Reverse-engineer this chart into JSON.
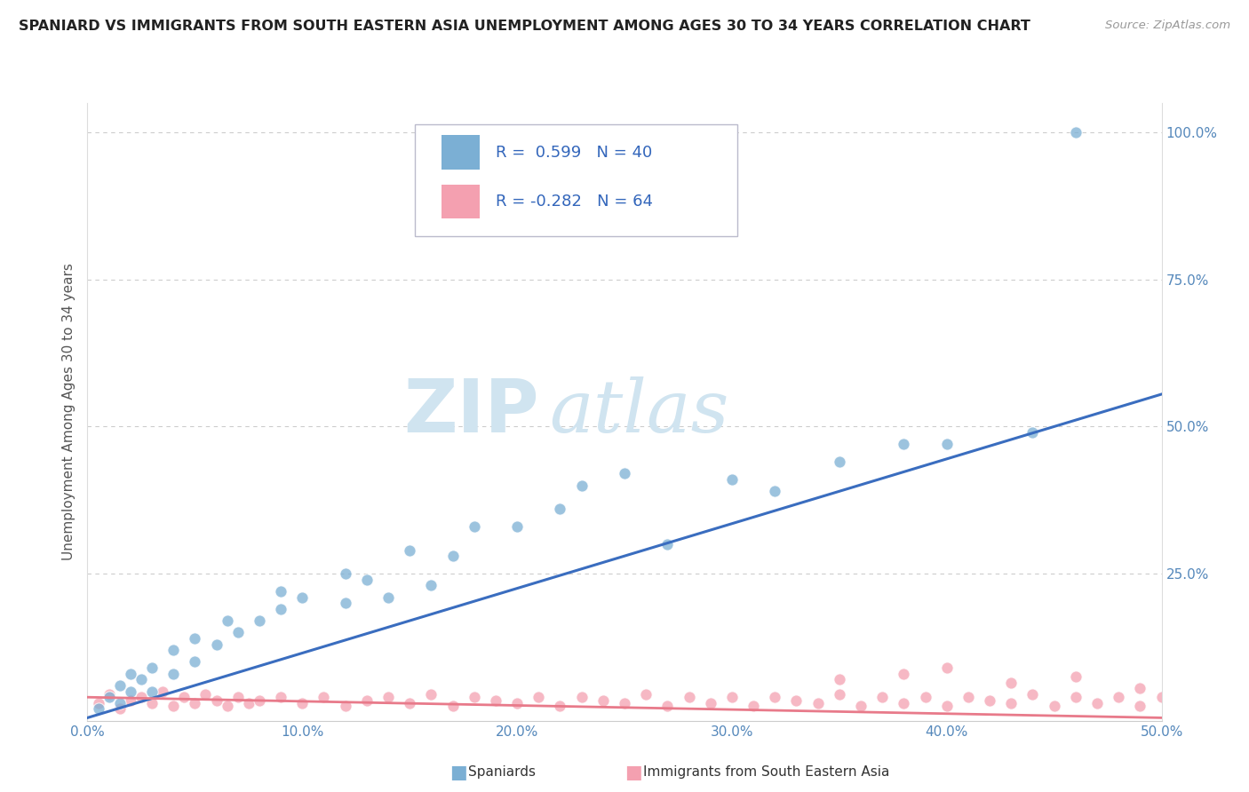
{
  "title": "SPANIARD VS IMMIGRANTS FROM SOUTH EASTERN ASIA UNEMPLOYMENT AMONG AGES 30 TO 34 YEARS CORRELATION CHART",
  "source": "Source: ZipAtlas.com",
  "ylabel": "Unemployment Among Ages 30 to 34 years",
  "x_min": 0.0,
  "x_max": 0.5,
  "y_min": 0.0,
  "y_max": 1.05,
  "x_ticks": [
    0.0,
    0.1,
    0.2,
    0.3,
    0.4,
    0.5
  ],
  "x_tick_labels": [
    "0.0%",
    "10.0%",
    "20.0%",
    "30.0%",
    "40.0%",
    "50.0%"
  ],
  "y_ticks": [
    0.0,
    0.25,
    0.5,
    0.75,
    1.0
  ],
  "y_tick_labels": [
    "",
    "25.0%",
    "50.0%",
    "75.0%",
    "100.0%"
  ],
  "spaniard_color": "#7bafd4",
  "immigrant_color": "#f4a0b0",
  "spaniard_R": 0.599,
  "spaniard_N": 40,
  "immigrant_R": -0.282,
  "immigrant_N": 64,
  "watermark_zip": "ZIP",
  "watermark_atlas": "atlas",
  "watermark_color": "#d0e4f0",
  "spaniard_line_x": [
    0.0,
    0.5
  ],
  "spaniard_line_y": [
    0.005,
    0.555
  ],
  "immigrant_line_x": [
    0.0,
    0.5
  ],
  "immigrant_line_y": [
    0.04,
    0.005
  ],
  "bottom_legend": [
    "Spaniards",
    "Immigrants from South Eastern Asia"
  ],
  "spaniard_scatter_x": [
    0.005,
    0.01,
    0.015,
    0.015,
    0.02,
    0.02,
    0.025,
    0.03,
    0.03,
    0.04,
    0.04,
    0.05,
    0.05,
    0.06,
    0.065,
    0.07,
    0.08,
    0.09,
    0.09,
    0.1,
    0.12,
    0.12,
    0.13,
    0.14,
    0.15,
    0.16,
    0.17,
    0.18,
    0.2,
    0.22,
    0.23,
    0.25,
    0.27,
    0.3,
    0.32,
    0.35,
    0.38,
    0.4,
    0.44,
    0.46
  ],
  "spaniard_scatter_y": [
    0.02,
    0.04,
    0.03,
    0.06,
    0.05,
    0.08,
    0.07,
    0.05,
    0.09,
    0.08,
    0.12,
    0.1,
    0.14,
    0.13,
    0.17,
    0.15,
    0.17,
    0.19,
    0.22,
    0.21,
    0.2,
    0.25,
    0.24,
    0.21,
    0.29,
    0.23,
    0.28,
    0.33,
    0.33,
    0.36,
    0.4,
    0.42,
    0.3,
    0.41,
    0.39,
    0.44,
    0.47,
    0.47,
    0.49,
    1.0
  ],
  "immigrant_scatter_x": [
    0.005,
    0.01,
    0.015,
    0.02,
    0.025,
    0.03,
    0.035,
    0.04,
    0.045,
    0.05,
    0.055,
    0.06,
    0.065,
    0.07,
    0.075,
    0.08,
    0.09,
    0.1,
    0.11,
    0.12,
    0.13,
    0.14,
    0.15,
    0.16,
    0.17,
    0.18,
    0.19,
    0.2,
    0.21,
    0.22,
    0.23,
    0.24,
    0.25,
    0.26,
    0.27,
    0.28,
    0.29,
    0.3,
    0.31,
    0.32,
    0.33,
    0.34,
    0.35,
    0.36,
    0.37,
    0.38,
    0.39,
    0.4,
    0.41,
    0.42,
    0.43,
    0.44,
    0.45,
    0.46,
    0.47,
    0.48,
    0.49,
    0.5,
    0.35,
    0.38,
    0.4,
    0.43,
    0.46,
    0.49
  ],
  "immigrant_scatter_y": [
    0.03,
    0.045,
    0.02,
    0.035,
    0.04,
    0.03,
    0.05,
    0.025,
    0.04,
    0.03,
    0.045,
    0.035,
    0.025,
    0.04,
    0.03,
    0.035,
    0.04,
    0.03,
    0.04,
    0.025,
    0.035,
    0.04,
    0.03,
    0.045,
    0.025,
    0.04,
    0.035,
    0.03,
    0.04,
    0.025,
    0.04,
    0.035,
    0.03,
    0.045,
    0.025,
    0.04,
    0.03,
    0.04,
    0.025,
    0.04,
    0.035,
    0.03,
    0.045,
    0.025,
    0.04,
    0.03,
    0.04,
    0.025,
    0.04,
    0.035,
    0.03,
    0.045,
    0.025,
    0.04,
    0.03,
    0.04,
    0.025,
    0.04,
    0.07,
    0.08,
    0.09,
    0.065,
    0.075,
    0.055
  ]
}
